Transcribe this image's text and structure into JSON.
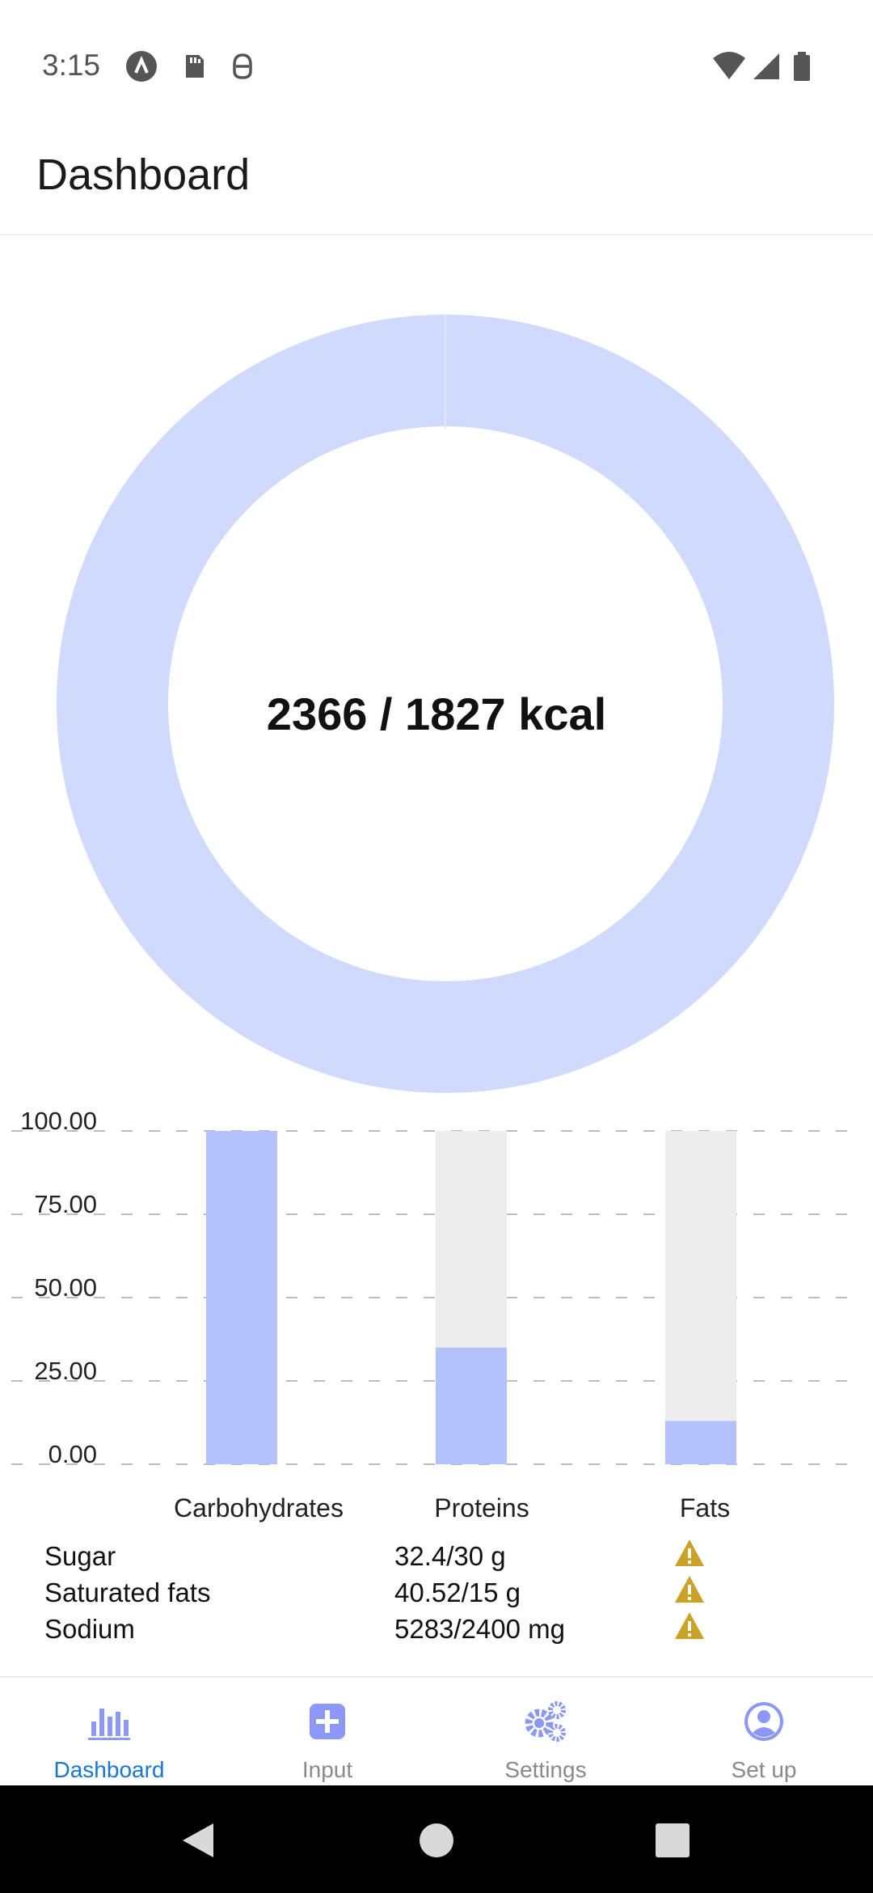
{
  "status_bar": {
    "time": "3:15",
    "left_icons": [
      "app-notification-icon",
      "sd-card-icon",
      "debug-icon"
    ],
    "right_icons": [
      "wifi-icon",
      "cell-signal-icon",
      "battery-icon"
    ]
  },
  "app_bar": {
    "title": "Dashboard"
  },
  "calories": {
    "label": "2366 / 1827 kcal",
    "consumed": 2366,
    "goal": 1827,
    "ring_color": "#d0dafd"
  },
  "chart_data": {
    "type": "bar",
    "categories": [
      "Carbohydrates",
      "Proteins",
      "Fats"
    ],
    "values": [
      100,
      35,
      13
    ],
    "background_values": [
      100,
      100,
      100
    ],
    "ylim": [
      0,
      100
    ],
    "yticks": [
      "100.00",
      "75.00",
      "50.00",
      "25.00",
      "0.00"
    ],
    "bar_color": "#b3c2fb",
    "track_color": "#ededed",
    "grid": "dashed horizontal"
  },
  "alerts": [
    {
      "name": "Sugar",
      "value": "32.4/30 g",
      "icon": "warning-icon"
    },
    {
      "name": "Saturated fats",
      "value": "40.52/15 g",
      "icon": "warning-icon"
    },
    {
      "name": "Sodium",
      "value": "5283/2400 mg",
      "icon": "warning-icon"
    }
  ],
  "bottom_nav": [
    {
      "label": "Dashboard",
      "icon": "bar-chart-icon",
      "active": true
    },
    {
      "label": "Input",
      "icon": "plus-square-icon",
      "active": false
    },
    {
      "label": "Settings",
      "icon": "gears-icon",
      "active": false
    },
    {
      "label": "Set up",
      "icon": "user-circle-icon",
      "active": false
    }
  ],
  "colors": {
    "accent": "#1976d2",
    "nav_icon": "#8b98f5",
    "warning": "#c9a227"
  }
}
